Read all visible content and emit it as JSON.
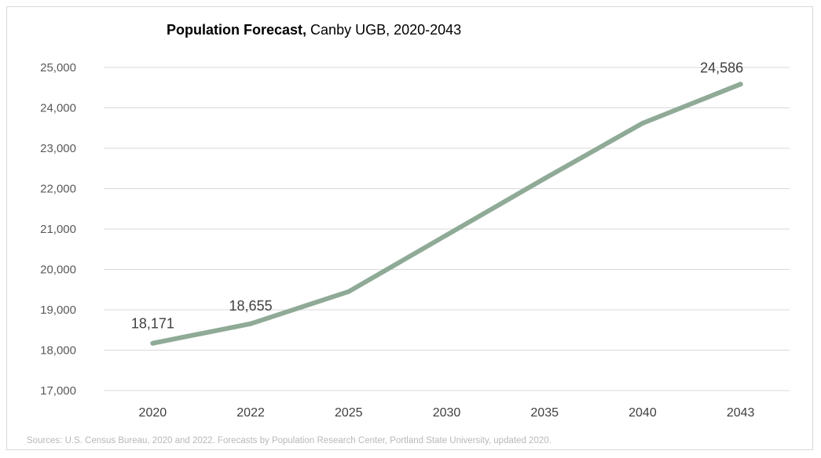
{
  "title": {
    "bold": "Population Forecast,",
    "rest": "Canby UGB, 2020-2043"
  },
  "source": "Sources: U.S. Census Bureau, 2020 and 2022. Forecasts by Population Research Center, Portland State University, updated 2020.",
  "colors": {
    "line": "#8faa96",
    "grid": "#d9d9d9"
  },
  "chart_data": {
    "type": "line",
    "title": "Population Forecast, Canby UGB, 2020-2043",
    "categories": [
      "2020",
      "2022",
      "2025",
      "2030",
      "2035",
      "2040",
      "2043"
    ],
    "series": [
      {
        "values": [
          18171,
          18655,
          19450,
          20850,
          22250,
          23620,
          24586
        ]
      }
    ],
    "data_labels": [
      {
        "index": 0,
        "text": "18,171"
      },
      {
        "index": 1,
        "text": "18,655"
      },
      {
        "index": 6,
        "text": "24,586"
      }
    ],
    "ylim": [
      17000,
      25000
    ],
    "y_ticks": [
      "17,000",
      "18,000",
      "19,000",
      "20,000",
      "21,000",
      "22,000",
      "23,000",
      "24,000",
      "25,000"
    ],
    "grid": true,
    "legend": "none"
  }
}
